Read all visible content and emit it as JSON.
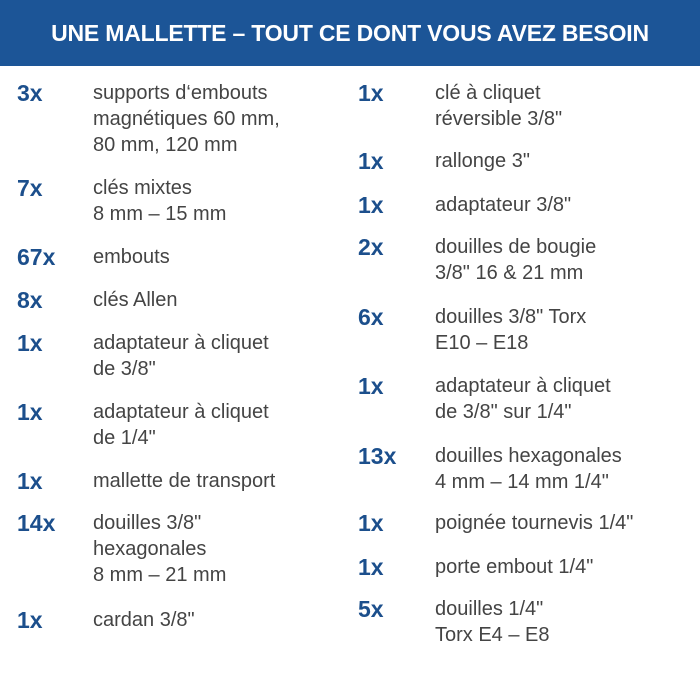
{
  "header": {
    "title": "UNE MALLETTE – TOUT CE DONT VOUS AVEZ BESOIN"
  },
  "columns": [
    {
      "items": [
        {
          "qty": "3x",
          "lines": [
            "supports d‘embouts",
            "magnétiques 60 mm,",
            "80 mm, 120 mm"
          ]
        },
        {
          "qty": "7x",
          "lines": [
            "clés mixtes",
            "8 mm – 15 mm"
          ]
        },
        {
          "qty": "67x",
          "lines": [
            "embouts"
          ]
        },
        {
          "qty": "8x",
          "lines": [
            "clés Allen"
          ]
        },
        {
          "qty": "1x",
          "lines": [
            "adaptateur à cliquet",
            "de 3/8\""
          ]
        },
        {
          "qty": "1x",
          "lines": [
            "adaptateur à cliquet",
            "de 1/4\""
          ]
        },
        {
          "qty": "1x",
          "lines": [
            "mallette de transport"
          ]
        },
        {
          "qty": "14x",
          "lines": [
            "douilles 3/8\"",
            "hexagonales",
            "8 mm – 21 mm"
          ]
        },
        {
          "qty": "1x",
          "lines": [
            "cardan 3/8\""
          ]
        }
      ]
    },
    {
      "items": [
        {
          "qty": "1x",
          "lines": [
            "clé à cliquet",
            "réversible 3/8\""
          ]
        },
        {
          "qty": "1x",
          "lines": [
            "rallonge 3\""
          ]
        },
        {
          "qty": "1x",
          "lines": [
            "adaptateur 3/8\""
          ]
        },
        {
          "qty": "2x",
          "lines": [
            "douilles de bougie",
            "3/8\" 16 & 21 mm"
          ]
        },
        {
          "qty": "6x",
          "lines": [
            "douilles 3/8\" Torx",
            "E10 – E18"
          ]
        },
        {
          "qty": "1x",
          "lines": [
            "adaptateur à cliquet",
            "de 3/8\" sur 1/4\""
          ]
        },
        {
          "qty": "13x",
          "lines": [
            "douilles hexagonales",
            "4 mm – 14 mm 1/4\""
          ]
        },
        {
          "qty": "1x",
          "lines": [
            "poignée tournevis 1/4\""
          ]
        },
        {
          "qty": "1x",
          "lines": [
            "porte embout 1/4\""
          ]
        },
        {
          "qty": "5x",
          "lines": [
            "douilles 1/4\"",
            "Torx E4 – E8"
          ]
        }
      ]
    }
  ]
}
